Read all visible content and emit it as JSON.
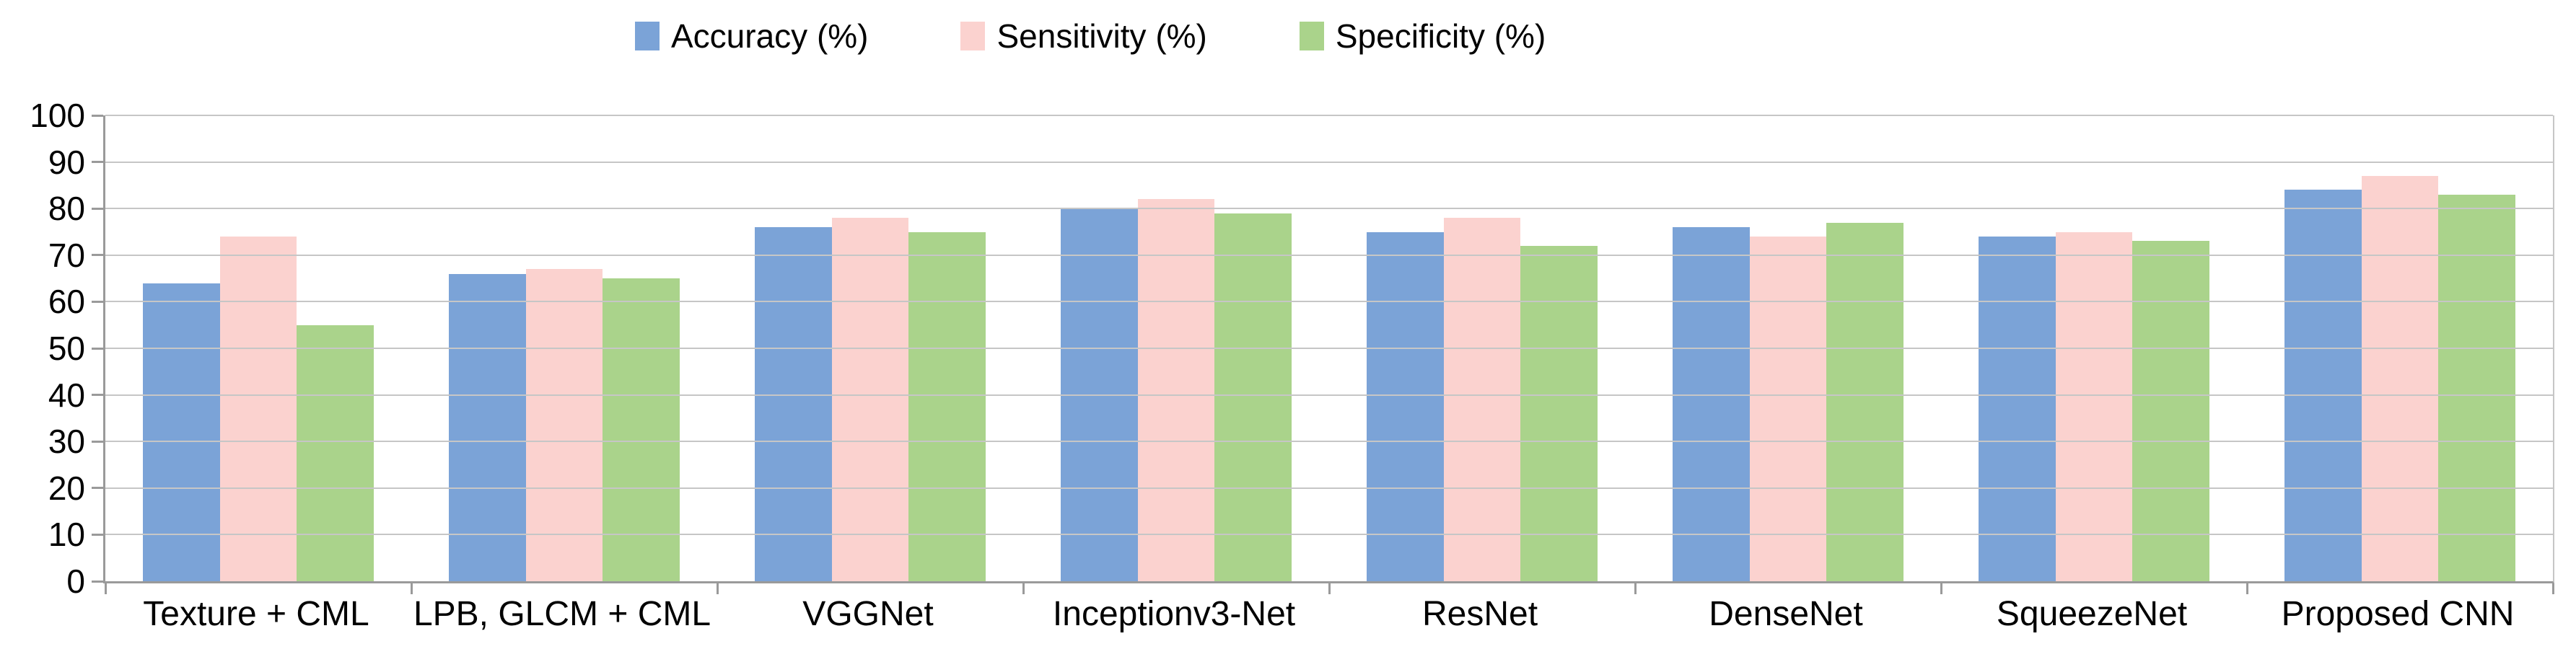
{
  "chart_data": {
    "type": "bar",
    "title": "",
    "categories": [
      "Texture + CML",
      "LPB, GLCM + CML",
      "VGGNet",
      "Inceptionv3-Net",
      "ResNet",
      "DenseNet",
      "SqueezeNet",
      "Proposed CNN"
    ],
    "series": [
      {
        "name": "Accuracy (%)",
        "color": "#7BA3D7",
        "values": [
          64,
          66,
          76,
          80,
          75,
          76,
          74,
          84
        ]
      },
      {
        "name": "Sensitivity (%)",
        "color": "#FBD2CF",
        "values": [
          74,
          67,
          78,
          82,
          78,
          74,
          75,
          87
        ]
      },
      {
        "name": "Specificity (%)",
        "color": "#AAD38B",
        "values": [
          55,
          65,
          75,
          79,
          72,
          77,
          73,
          83
        ]
      }
    ],
    "xlabel": "",
    "ylabel": "",
    "ylim": [
      0,
      100
    ],
    "ytick_step": 10,
    "ytick_labels": [
      "0",
      "10",
      "20",
      "30",
      "40",
      "50",
      "60",
      "70",
      "80",
      "90",
      "100"
    ],
    "grid": "horizontal",
    "legend_position": "top-center"
  },
  "colors": {
    "background": "#FFFFFF",
    "gridline": "#C6C6C6",
    "axis": "#9A9A9A",
    "text": "#000000"
  }
}
